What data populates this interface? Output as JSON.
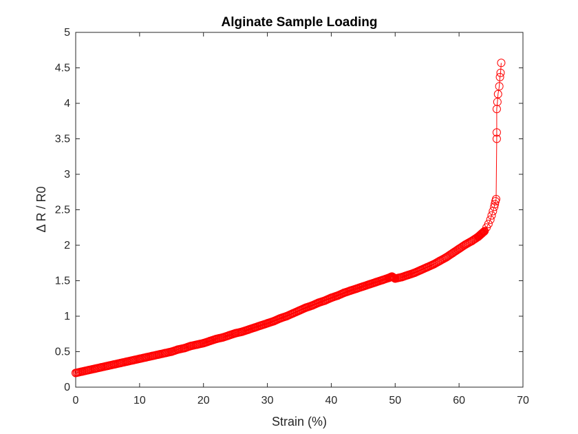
{
  "chart_data": {
    "type": "line",
    "title": "Alginate Sample Loading",
    "xlabel": "Strain (%)",
    "ylabel": "Δ R / R0",
    "xlim": [
      0,
      70
    ],
    "ylim": [
      0,
      5
    ],
    "xticks": [
      0,
      10,
      20,
      30,
      40,
      50,
      60,
      70
    ],
    "yticks": [
      0,
      0.5,
      1,
      1.5,
      2,
      2.5,
      3,
      3.5,
      4,
      4.5,
      5
    ],
    "xtick_labels": [
      "0",
      "10",
      "20",
      "30",
      "40",
      "50",
      "60",
      "70"
    ],
    "ytick_labels": [
      "0",
      "0.5",
      "1",
      "1.5",
      "2",
      "2.5",
      "3",
      "3.5",
      "4",
      "4.5",
      "5"
    ],
    "grid": false,
    "legend": "none",
    "series_color": "#ff0000",
    "marker": "circle-open",
    "series": [
      {
        "x": [
          0,
          1,
          2,
          3,
          4,
          5,
          6,
          7,
          8,
          9,
          10,
          11,
          12,
          13,
          14,
          15,
          16,
          17,
          18,
          19,
          20,
          21,
          22,
          23,
          24,
          25,
          26,
          27,
          28,
          29,
          30,
          31,
          32,
          33,
          34,
          35,
          36,
          37,
          38,
          39,
          40,
          41,
          42,
          43,
          44,
          45,
          46,
          47,
          48,
          49,
          49.5,
          50,
          51,
          52,
          53,
          54,
          55,
          56,
          57,
          58,
          59,
          60,
          61,
          62,
          63,
          63.5,
          64,
          64.3,
          64.6,
          64.9,
          65.1,
          65.3,
          65.5,
          65.6,
          65.7,
          65.8,
          65.9,
          65.9,
          65.9,
          66.0,
          66.1,
          66.3,
          66.4,
          66.5,
          66.6
        ],
        "y": [
          0.2,
          0.22,
          0.24,
          0.26,
          0.28,
          0.3,
          0.32,
          0.34,
          0.36,
          0.38,
          0.4,
          0.42,
          0.44,
          0.46,
          0.48,
          0.5,
          0.53,
          0.55,
          0.58,
          0.6,
          0.62,
          0.65,
          0.68,
          0.7,
          0.73,
          0.76,
          0.78,
          0.81,
          0.84,
          0.87,
          0.9,
          0.93,
          0.97,
          1.0,
          1.04,
          1.08,
          1.12,
          1.15,
          1.19,
          1.22,
          1.26,
          1.29,
          1.33,
          1.36,
          1.39,
          1.42,
          1.45,
          1.48,
          1.51,
          1.54,
          1.56,
          1.53,
          1.55,
          1.58,
          1.61,
          1.65,
          1.69,
          1.73,
          1.78,
          1.83,
          1.89,
          1.95,
          2.01,
          2.06,
          2.12,
          2.16,
          2.2,
          2.25,
          2.3,
          2.36,
          2.42,
          2.48,
          2.54,
          2.58,
          2.62,
          2.65,
          3.5,
          3.59,
          3.92,
          4.02,
          4.13,
          4.24,
          4.37,
          4.43,
          4.57
        ]
      }
    ]
  }
}
